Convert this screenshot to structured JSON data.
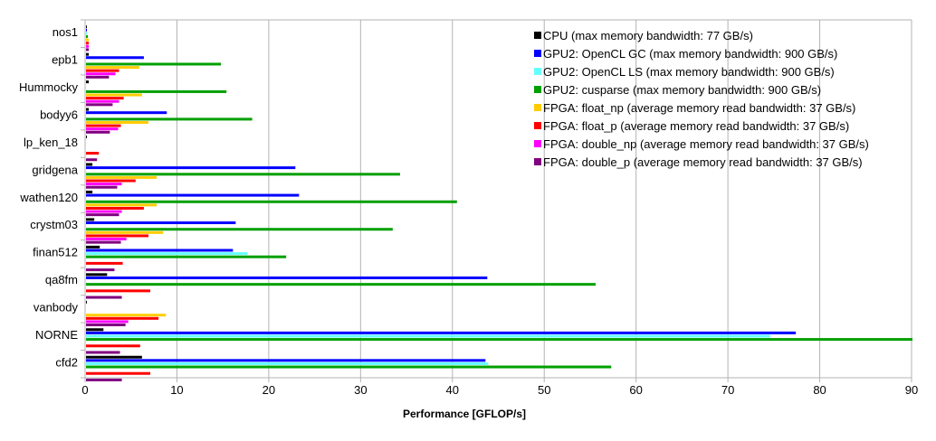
{
  "chart_data": {
    "type": "bar",
    "orientation": "horizontal",
    "title": "",
    "xlabel": "Performance [GFLOP/s]",
    "ylabel": "",
    "xlim": [
      0,
      90
    ],
    "xticks": [
      0,
      10,
      20,
      30,
      40,
      50,
      60,
      70,
      80,
      90
    ],
    "grid": true,
    "legend_position": "top-right",
    "categories": [
      "nos1",
      "epb1",
      "Hummocky",
      "bodyy6",
      "lp_ken_18",
      "gridgena",
      "wathen120",
      "crystm03",
      "finan512",
      "qa8fm",
      "vanbody",
      "NORNE",
      "cfd2"
    ],
    "series": [
      {
        "name": "CPU (max memory bandwidth: 77 GB/s)",
        "color": "#000000",
        "values": [
          0.1,
          0.3,
          0.3,
          0.3,
          0.1,
          0.7,
          0.7,
          0.9,
          1.5,
          2.3,
          0.1,
          1.9,
          6.1
        ]
      },
      {
        "name": "GPU2: OpenCL GC (max memory bandwidth: 900 GB/s)",
        "color": "#0000ff",
        "values": [
          0.1,
          6.3,
          0,
          8.8,
          0,
          22.8,
          23.2,
          16.3,
          16.0,
          43.7,
          0,
          77.3,
          43.5
        ]
      },
      {
        "name": "GPU2: OpenCL LS (max memory bandwidth: 900 GB/s)",
        "color": "#66ffff",
        "values": [
          0.1,
          0,
          0,
          0,
          0,
          0,
          0,
          0,
          17.6,
          0,
          0,
          74.5,
          43.8
        ]
      },
      {
        "name": "GPU2: cusparse (max memory bandwidth: 900 GB/s)",
        "color": "#00a000",
        "values": [
          0.2,
          14.7,
          15.3,
          18.1,
          0,
          34.2,
          40.4,
          33.4,
          21.8,
          55.5,
          0,
          90.0,
          57.2
        ]
      },
      {
        "name": "FPGA: float_np (average memory read bandwidth: 37 GB/s)",
        "color": "#ffcc00",
        "values": [
          0.3,
          5.8,
          6.1,
          6.8,
          0,
          7.7,
          7.7,
          8.4,
          0,
          0,
          8.7,
          0,
          0
        ]
      },
      {
        "name": "FPGA: float_p (average memory read bandwidth: 37 GB/s)",
        "color": "#ff0000",
        "values": [
          0.3,
          3.6,
          4.1,
          3.8,
          1.4,
          5.4,
          6.3,
          6.8,
          4.0,
          7.0,
          7.9,
          5.9,
          7.0
        ]
      },
      {
        "name": "FPGA: double_np (average memory read bandwidth: 37 GB/s)",
        "color": "#ff00ff",
        "values": [
          0.3,
          3.2,
          3.6,
          3.5,
          0,
          3.9,
          3.9,
          4.4,
          0,
          0,
          4.6,
          0,
          0
        ]
      },
      {
        "name": "FPGA: double_p (average memory read bandwidth: 37 GB/s)",
        "color": "#800080",
        "values": [
          0.3,
          2.5,
          2.9,
          2.6,
          1.2,
          3.4,
          3.6,
          3.8,
          3.1,
          3.9,
          4.3,
          3.7,
          3.9
        ]
      }
    ]
  }
}
